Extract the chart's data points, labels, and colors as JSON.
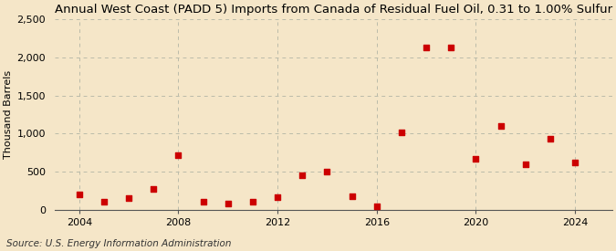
{
  "title": "Annual West Coast (PADD 5) Imports from Canada of Residual Fuel Oil, 0.31 to 1.00% Sulfur",
  "ylabel": "Thousand Barrels",
  "source": "Source: U.S. Energy Information Administration",
  "background_color": "#f5e6c8",
  "years": [
    2004,
    2005,
    2006,
    2007,
    2008,
    2009,
    2010,
    2011,
    2012,
    2013,
    2014,
    2015,
    2016,
    2017,
    2018,
    2019,
    2020,
    2021,
    2022,
    2023,
    2024
  ],
  "values": [
    200,
    100,
    150,
    270,
    720,
    100,
    80,
    110,
    160,
    450,
    500,
    180,
    40,
    1020,
    2130,
    2130,
    670,
    1100,
    600,
    930,
    620
  ],
  "marker_color": "#cc0000",
  "marker": "s",
  "marker_size": 4,
  "xlim": [
    2003.0,
    2025.5
  ],
  "ylim": [
    0,
    2500
  ],
  "yticks": [
    0,
    500,
    1000,
    1500,
    2000,
    2500
  ],
  "ytick_labels": [
    "0",
    "500",
    "1,000",
    "1,500",
    "2,000",
    "2,500"
  ],
  "xticks": [
    2004,
    2008,
    2012,
    2016,
    2020,
    2024
  ],
  "grid_color": "#bbbbaa",
  "title_fontsize": 9.5,
  "axis_fontsize": 8,
  "tick_fontsize": 8,
  "source_fontsize": 7.5
}
